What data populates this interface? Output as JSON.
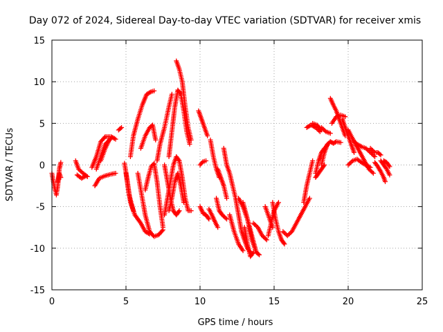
{
  "chart_data": {
    "type": "scatter",
    "title": "Day 072 of 2024, Sidereal Day-to-day VTEC variation (SDTVAR) for receiver xmis",
    "xlabel": "GPS time / hours",
    "ylabel": "SDTVAR / TECUs",
    "xlim": [
      0,
      25
    ],
    "ylim": [
      -15,
      15
    ],
    "xticks": [
      "0",
      "5",
      "10",
      "15",
      "20",
      "25"
    ],
    "yticks": [
      "-15",
      "-10",
      "-5",
      "0",
      "5",
      "10",
      "15"
    ],
    "grid": true,
    "marker": "+",
    "color": "#ff0000",
    "tracks": [
      [
        [
          0.0,
          -1.0
        ],
        [
          0.15,
          -2.5
        ],
        [
          0.3,
          -3.6
        ],
        [
          0.4,
          -2.5
        ],
        [
          0.5,
          -0.5
        ],
        [
          0.6,
          0.3
        ]
      ],
      [
        [
          0.4,
          -2.0
        ],
        [
          0.5,
          -1.0
        ],
        [
          0.6,
          -1.5
        ]
      ],
      [
        [
          1.6,
          0.5
        ],
        [
          1.8,
          -0.5
        ],
        [
          2.1,
          -1.0
        ],
        [
          2.4,
          -1.4
        ]
      ],
      [
        [
          1.7,
          -1.2
        ],
        [
          2.0,
          -1.6
        ],
        [
          2.3,
          -1.3
        ]
      ],
      [
        [
          2.7,
          -0.3
        ],
        [
          3.0,
          1.0
        ],
        [
          3.3,
          2.8
        ],
        [
          3.6,
          3.4
        ],
        [
          4.0,
          3.4
        ],
        [
          4.3,
          3.1
        ]
      ],
      [
        [
          2.9,
          -2.5
        ],
        [
          3.2,
          -1.6
        ],
        [
          3.6,
          -1.3
        ],
        [
          4.0,
          -1.1
        ],
        [
          4.3,
          -1.0
        ]
      ],
      [
        [
          3.0,
          -0.5
        ],
        [
          3.3,
          1.0
        ],
        [
          3.6,
          2.5
        ],
        [
          4.0,
          3.2
        ]
      ],
      [
        [
          3.3,
          0.5
        ],
        [
          3.6,
          2.0
        ],
        [
          3.9,
          3.1
        ]
      ],
      [
        [
          4.5,
          4.2
        ],
        [
          4.7,
          4.5
        ]
      ],
      [
        [
          4.9,
          0.2
        ],
        [
          5.1,
          -2.0
        ],
        [
          5.3,
          -4.5
        ],
        [
          5.6,
          -6.0
        ],
        [
          6.0,
          -7.0
        ],
        [
          6.3,
          -8.0
        ],
        [
          6.6,
          -8.3
        ]
      ],
      [
        [
          5.0,
          -1.0
        ],
        [
          5.2,
          -3.5
        ],
        [
          5.5,
          -5.5
        ]
      ],
      [
        [
          5.3,
          1.0
        ],
        [
          5.5,
          3.5
        ],
        [
          5.8,
          5.5
        ],
        [
          6.1,
          7.2
        ],
        [
          6.4,
          8.5
        ],
        [
          6.7,
          8.8
        ],
        [
          6.9,
          8.9
        ]
      ],
      [
        [
          5.8,
          -1.0
        ],
        [
          6.0,
          -3.0
        ],
        [
          6.3,
          -6.0
        ],
        [
          6.6,
          -8.0
        ],
        [
          6.9,
          -8.6
        ],
        [
          7.2,
          -8.4
        ],
        [
          7.5,
          -7.8
        ]
      ],
      [
        [
          6.3,
          -3.0
        ],
        [
          6.5,
          -1.5
        ],
        [
          6.7,
          -0.2
        ],
        [
          6.9,
          0.2
        ],
        [
          7.1,
          -2.0
        ],
        [
          7.3,
          -5.0
        ],
        [
          7.5,
          -7.5
        ]
      ],
      [
        [
          6.0,
          2.0
        ],
        [
          6.3,
          3.5
        ],
        [
          6.6,
          4.5
        ],
        [
          6.8,
          4.8
        ],
        [
          7.0,
          3.0
        ]
      ],
      [
        [
          7.1,
          0.5
        ],
        [
          7.3,
          2.5
        ],
        [
          7.6,
          4.5
        ],
        [
          7.9,
          7.0
        ],
        [
          8.1,
          8.5
        ]
      ],
      [
        [
          7.6,
          -6.0
        ],
        [
          7.8,
          -4.0
        ],
        [
          8.0,
          -2.0
        ],
        [
          8.2,
          0.0
        ],
        [
          8.4,
          1.0
        ],
        [
          8.6,
          0.5
        ],
        [
          8.8,
          -1.5
        ],
        [
          9.0,
          -4.0
        ],
        [
          9.2,
          -5.5
        ],
        [
          9.4,
          -5.5
        ]
      ],
      [
        [
          7.9,
          -5.5
        ],
        [
          8.1,
          -4.0
        ],
        [
          8.3,
          -2.0
        ],
        [
          8.5,
          -1.0
        ],
        [
          8.7,
          -2.5
        ],
        [
          8.9,
          -4.5
        ]
      ],
      [
        [
          7.9,
          1.0
        ],
        [
          8.1,
          4.0
        ],
        [
          8.3,
          7.0
        ],
        [
          8.5,
          9.0
        ],
        [
          8.7,
          8.5
        ],
        [
          8.9,
          6.5
        ],
        [
          9.1,
          4.0
        ],
        [
          9.3,
          2.5
        ]
      ],
      [
        [
          8.4,
          12.5
        ],
        [
          8.6,
          11.5
        ],
        [
          8.8,
          10.0
        ],
        [
          9.0,
          7.0
        ],
        [
          9.2,
          4.5
        ],
        [
          9.4,
          3.0
        ]
      ],
      [
        [
          7.6,
          0.0
        ],
        [
          7.8,
          -2.0
        ],
        [
          8.0,
          -4.0
        ],
        [
          8.2,
          -5.5
        ],
        [
          8.4,
          -6.0
        ],
        [
          8.6,
          -5.5
        ]
      ],
      [
        [
          9.9,
          6.5
        ],
        [
          10.1,
          5.5
        ],
        [
          10.3,
          4.5
        ],
        [
          10.5,
          3.5
        ]
      ],
      [
        [
          10.0,
          0.0
        ],
        [
          10.2,
          0.4
        ],
        [
          10.4,
          0.5
        ]
      ],
      [
        [
          10.0,
          -5.0
        ],
        [
          10.2,
          -5.8
        ],
        [
          10.4,
          -6.0
        ],
        [
          10.6,
          -6.5
        ]
      ],
      [
        [
          10.6,
          -5.3
        ],
        [
          10.8,
          -6.0
        ],
        [
          11.0,
          -6.8
        ],
        [
          11.2,
          -7.5
        ]
      ],
      [
        [
          10.7,
          3.0
        ],
        [
          10.9,
          1.0
        ],
        [
          11.1,
          -0.5
        ],
        [
          11.3,
          -1.5
        ]
      ],
      [
        [
          11.1,
          -4.0
        ],
        [
          11.3,
          -5.5
        ],
        [
          11.5,
          -6.0
        ],
        [
          11.8,
          -6.5
        ]
      ],
      [
        [
          11.2,
          -0.5
        ],
        [
          11.4,
          -1.5
        ],
        [
          11.6,
          -2.5
        ],
        [
          11.8,
          -4.0
        ]
      ],
      [
        [
          11.6,
          2.0
        ],
        [
          11.8,
          0.0
        ],
        [
          12.0,
          -1.0
        ],
        [
          12.2,
          -2.5
        ],
        [
          12.4,
          -4.0
        ],
        [
          12.6,
          -6.0
        ],
        [
          12.8,
          -8.0
        ],
        [
          13.0,
          -9.0
        ],
        [
          13.2,
          -10.0
        ],
        [
          13.4,
          -10.5
        ]
      ],
      [
        [
          12.0,
          -6.0
        ],
        [
          12.3,
          -8.0
        ],
        [
          12.6,
          -9.5
        ],
        [
          12.9,
          -10.3
        ]
      ],
      [
        [
          12.6,
          -4.0
        ],
        [
          12.9,
          -5.0
        ],
        [
          13.2,
          -6.5
        ],
        [
          13.5,
          -9.0
        ],
        [
          13.8,
          -10.5
        ]
      ],
      [
        [
          12.9,
          -4.5
        ],
        [
          13.2,
          -6.5
        ],
        [
          13.5,
          -8.5
        ],
        [
          13.8,
          -10.5
        ],
        [
          14.0,
          -10.8
        ]
      ],
      [
        [
          13.0,
          -7.5
        ],
        [
          13.2,
          -9.5
        ],
        [
          13.4,
          -11.0
        ],
        [
          13.6,
          -10.5
        ]
      ],
      [
        [
          13.6,
          -7.0
        ],
        [
          13.9,
          -7.5
        ],
        [
          14.2,
          -8.5
        ],
        [
          14.5,
          -9.0
        ]
      ],
      [
        [
          14.4,
          -5.0
        ],
        [
          14.7,
          -6.5
        ],
        [
          14.9,
          -7.5
        ]
      ],
      [
        [
          14.6,
          -8.5
        ],
        [
          14.8,
          -7.0
        ],
        [
          15.0,
          -5.5
        ],
        [
          15.3,
          -4.5
        ]
      ],
      [
        [
          14.9,
          -4.5
        ],
        [
          15.1,
          -6.5
        ],
        [
          15.3,
          -8.0
        ],
        [
          15.5,
          -9.0
        ],
        [
          15.7,
          -9.5
        ]
      ],
      [
        [
          15.6,
          -8.0
        ],
        [
          15.9,
          -8.5
        ],
        [
          16.2,
          -8.0
        ],
        [
          16.5,
          -7.0
        ],
        [
          16.8,
          -6.0
        ],
        [
          17.1,
          -5.0
        ],
        [
          17.4,
          -4.0
        ]
      ],
      [
        [
          17.0,
          -4.5
        ],
        [
          17.2,
          -2.5
        ],
        [
          17.4,
          -1.0
        ],
        [
          17.6,
          0.5
        ]
      ],
      [
        [
          17.2,
          4.5
        ],
        [
          17.5,
          4.8
        ],
        [
          17.8,
          4.5
        ],
        [
          18.1,
          4.0
        ]
      ],
      [
        [
          17.6,
          5.0
        ],
        [
          17.9,
          4.8
        ],
        [
          18.2,
          4.2
        ]
      ],
      [
        [
          17.8,
          -1.5
        ],
        [
          18.0,
          -1.0
        ],
        [
          18.2,
          -0.5
        ],
        [
          18.4,
          0.0
        ]
      ],
      [
        [
          17.8,
          -1.0
        ],
        [
          18.0,
          0.5
        ],
        [
          18.2,
          1.5
        ],
        [
          18.4,
          2.0
        ],
        [
          18.6,
          2.4
        ]
      ],
      [
        [
          18.2,
          0.0
        ],
        [
          18.4,
          1.5
        ],
        [
          18.6,
          2.5
        ],
        [
          18.8,
          2.8
        ],
        [
          19.0,
          2.6
        ],
        [
          19.2,
          2.8
        ],
        [
          19.5,
          2.7
        ]
      ],
      [
        [
          18.8,
          8.0
        ],
        [
          19.0,
          7.2
        ],
        [
          19.2,
          6.5
        ],
        [
          19.4,
          5.5
        ],
        [
          19.6,
          4.5
        ],
        [
          19.8,
          3.5
        ]
      ],
      [
        [
          18.9,
          5.0
        ],
        [
          19.2,
          5.8
        ],
        [
          19.5,
          6.0
        ],
        [
          19.8,
          5.8
        ]
      ],
      [
        [
          18.2,
          4.5
        ],
        [
          18.5,
          4.0
        ],
        [
          18.8,
          3.8
        ]
      ],
      [
        [
          19.6,
          5.5
        ],
        [
          19.8,
          4.5
        ],
        [
          20.0,
          3.5
        ],
        [
          20.2,
          2.5
        ],
        [
          20.4,
          1.5
        ]
      ],
      [
        [
          20.0,
          4.2
        ],
        [
          20.2,
          3.5
        ],
        [
          20.5,
          2.5
        ],
        [
          20.8,
          1.5
        ],
        [
          21.1,
          0.5
        ],
        [
          21.4,
          -0.5
        ],
        [
          21.7,
          -1.0
        ]
      ],
      [
        [
          20.0,
          0.0
        ],
        [
          20.3,
          0.5
        ],
        [
          20.6,
          0.7
        ],
        [
          20.9,
          0.3
        ],
        [
          21.2,
          0.0
        ],
        [
          21.5,
          -0.3
        ]
      ],
      [
        [
          20.3,
          3.0
        ],
        [
          20.6,
          2.5
        ],
        [
          20.9,
          2.2
        ],
        [
          21.2,
          2.0
        ],
        [
          21.5,
          1.5
        ],
        [
          21.8,
          1.0
        ]
      ],
      [
        [
          21.5,
          2.0
        ],
        [
          21.8,
          1.5
        ],
        [
          22.0,
          1.5
        ],
        [
          22.2,
          1.2
        ]
      ],
      [
        [
          21.8,
          0.3
        ],
        [
          22.0,
          -0.2
        ],
        [
          22.2,
          -0.8
        ],
        [
          22.4,
          -1.5
        ],
        [
          22.5,
          -2.0
        ]
      ],
      [
        [
          22.2,
          0.5
        ],
        [
          22.4,
          0.0
        ],
        [
          22.6,
          -0.5
        ],
        [
          22.8,
          -1.2
        ]
      ],
      [
        [
          22.4,
          0.5
        ],
        [
          22.6,
          0.3
        ],
        [
          22.8,
          -0.2
        ]
      ]
    ]
  }
}
